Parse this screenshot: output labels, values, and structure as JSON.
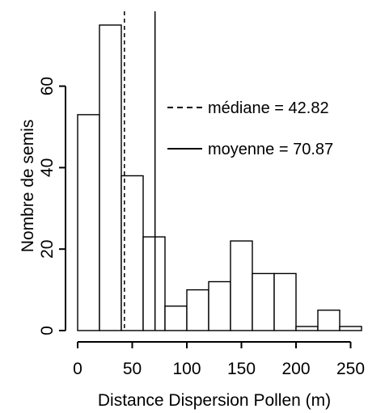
{
  "chart_data": {
    "type": "bar",
    "title": "",
    "xlabel": "Distance Dispersion Pollen (m)",
    "ylabel": "Nombre de semis",
    "bin_edges": [
      0,
      20,
      40,
      60,
      80,
      100,
      120,
      140,
      160,
      180,
      200,
      220,
      240,
      260
    ],
    "values": [
      53,
      75,
      38,
      23,
      6,
      10,
      12,
      22,
      14,
      14,
      1,
      5,
      1
    ],
    "xlim": [
      0,
      260
    ],
    "ylim": [
      0,
      75
    ],
    "xticks": [
      0,
      50,
      100,
      150,
      200,
      250
    ],
    "xtick_labels": [
      "0",
      "50",
      "100",
      "150",
      "200",
      "250"
    ],
    "yticks": [
      0,
      20,
      40,
      60
    ],
    "ytick_labels": [
      "0",
      "20",
      "40",
      "60"
    ],
    "reference_lines": [
      {
        "label": "médiane = 42.82",
        "x": 42.82,
        "style": "dashed"
      },
      {
        "label": "moyenne = 70.87",
        "x": 70.87,
        "style": "solid"
      }
    ],
    "legend_position": "right-upper",
    "grid": false
  }
}
